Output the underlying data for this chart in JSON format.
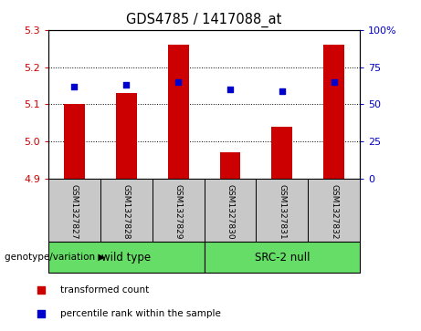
{
  "title": "GDS4785 / 1417088_at",
  "samples": [
    "GSM1327827",
    "GSM1327828",
    "GSM1327829",
    "GSM1327830",
    "GSM1327831",
    "GSM1327832"
  ],
  "red_values": [
    5.1,
    5.13,
    5.26,
    4.97,
    5.04,
    5.26
  ],
  "blue_percentiles": [
    62,
    63,
    65,
    60,
    59,
    65
  ],
  "ylim_left": [
    4.9,
    5.3
  ],
  "ylim_right": [
    0,
    100
  ],
  "yticks_left": [
    4.9,
    5.0,
    5.1,
    5.2,
    5.3
  ],
  "yticks_right": [
    0,
    25,
    50,
    75,
    100
  ],
  "ytick_labels_right": [
    "0",
    "25",
    "50",
    "75",
    "100%"
  ],
  "groups": [
    {
      "name": "wild type",
      "indices": [
        0,
        1,
        2
      ],
      "color": "#66DD66"
    },
    {
      "name": "SRC-2 null",
      "indices": [
        3,
        4,
        5
      ],
      "color": "#66DD66"
    }
  ],
  "group_label": "genotype/variation",
  "legend_red": "transformed count",
  "legend_blue": "percentile rank within the sample",
  "bar_color": "#CC0000",
  "dot_color": "#0000CC",
  "label_color_left": "#CC0000",
  "label_color_right": "#0000CC",
  "box_color": "#C8C8C8",
  "figsize": [
    4.61,
    3.63
  ],
  "dpi": 100
}
